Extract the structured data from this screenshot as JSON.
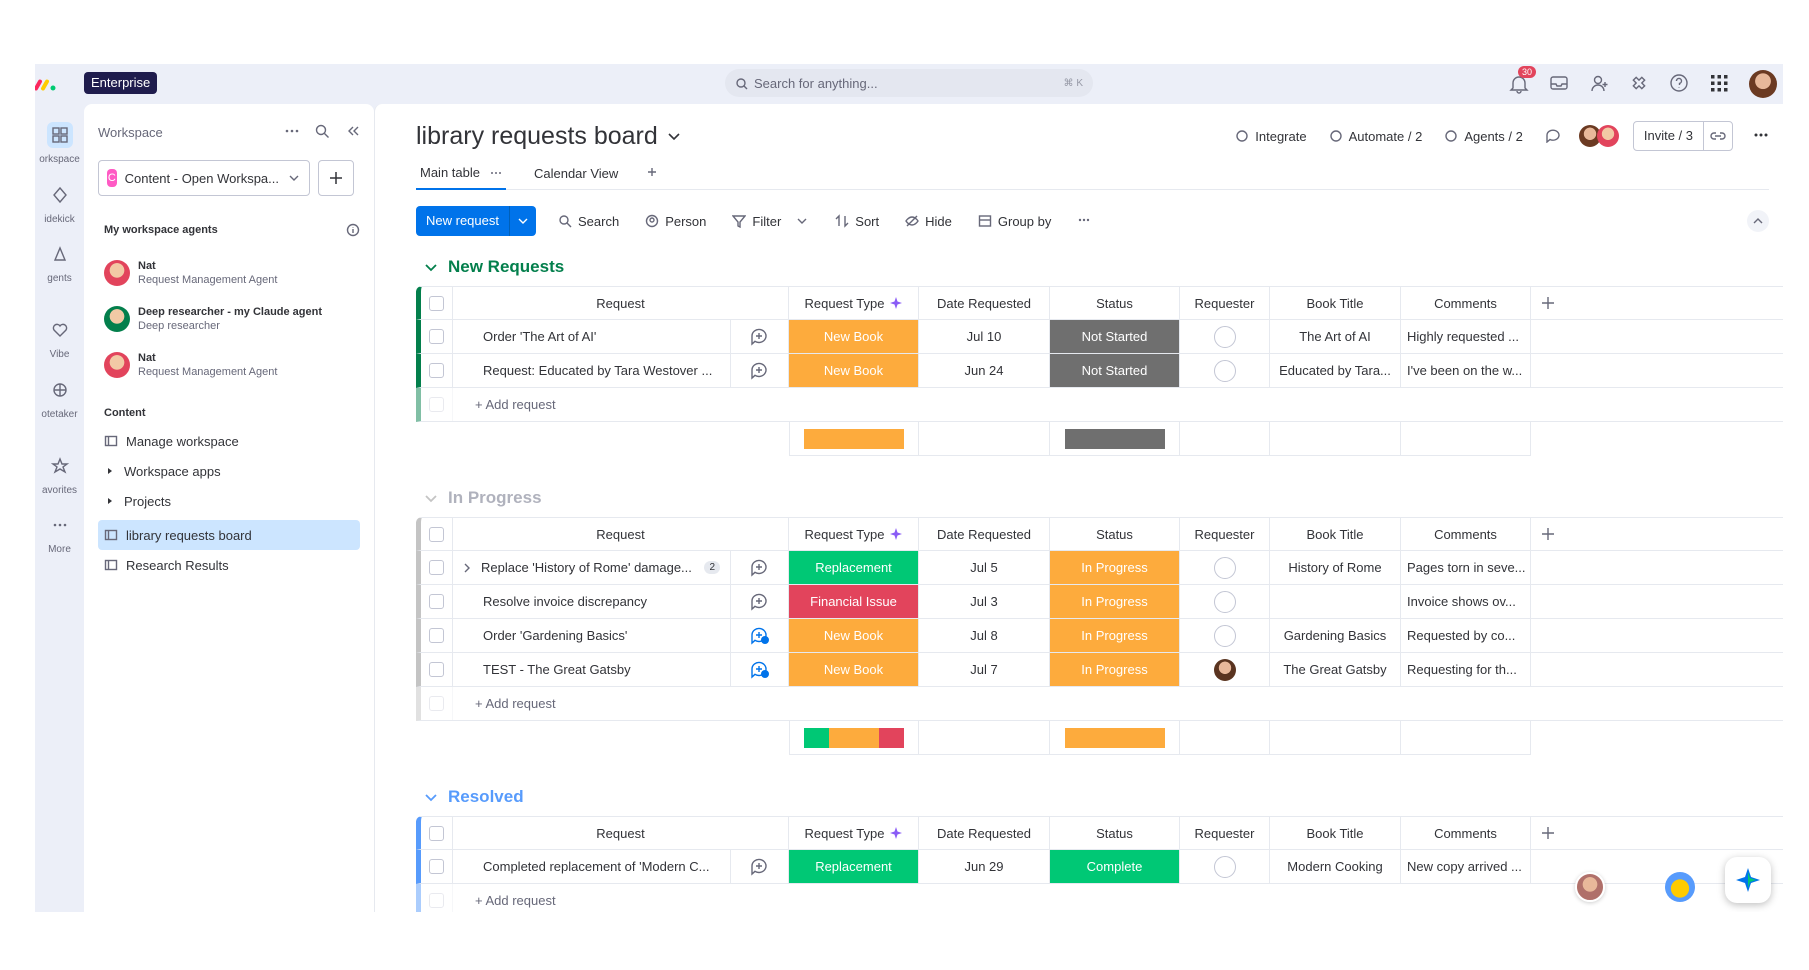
{
  "topbar": {
    "badge": "Enterprise",
    "search": "Search for anything...",
    "shortcut": "⌘ K",
    "notifications": "30"
  },
  "rail": {
    "items": [
      "orkspace",
      "idekick",
      "gents",
      "Vibe",
      "otetaker",
      "avorites",
      "More"
    ]
  },
  "sidebar": {
    "title": "Workspace",
    "workspace_initial": "C",
    "workspace": "Content - Open Workspa...",
    "agents_heading": "My workspace agents",
    "agents": [
      {
        "name": "Nat",
        "role": "Request Management Agent"
      },
      {
        "name": "Deep researcher - my Claude agent",
        "role": "Deep researcher"
      },
      {
        "name": "Nat",
        "role": "Request Management Agent"
      }
    ],
    "content_heading": "Content",
    "items": [
      {
        "label": "Manage workspace"
      },
      {
        "label": "Workspace apps",
        "expandable": true
      },
      {
        "label": "Projects",
        "expandable": true
      },
      {
        "label": "library requests board",
        "active": true
      },
      {
        "label": "Research Results"
      }
    ]
  },
  "board": {
    "title": "library requests board",
    "actions": [
      "Integrate",
      "Automate / 2",
      "Agents / 2"
    ],
    "invite": "Invite / 3",
    "tabs": [
      "Main table",
      "Calendar View"
    ],
    "toolbar": {
      "primary": "New request",
      "items": [
        "Search",
        "Person",
        "Filter",
        "Sort",
        "Hide",
        "Group by"
      ]
    },
    "columns": [
      "Request",
      "Request Type",
      "Date Requested",
      "Status",
      "Requester",
      "Book Title",
      "Comments"
    ],
    "add_row": "+ Add request",
    "groups": [
      {
        "name": "New Requests",
        "color": "#037f4c",
        "rows": [
          {
            "request": "Order 'The Art of AI'",
            "type": "New Book",
            "type_color": "#fdab3d",
            "date": "Jul 10",
            "status": "Not Started",
            "status_color": "#6f6f6f",
            "requester_assigned": false,
            "has_update": false,
            "book": "The Art of AI",
            "comments": "Highly requested ..."
          },
          {
            "request": "Request: Educated by Tara Westover ...",
            "type": "New Book",
            "type_color": "#fdab3d",
            "date": "Jun 24",
            "status": "Not Started",
            "status_color": "#6f6f6f",
            "requester_assigned": false,
            "has_update": false,
            "book": "Educated by Tara...",
            "comments": "I've been on the w..."
          }
        ]
      },
      {
        "name": "In Progress",
        "color": "#c4c4c4",
        "rows": [
          {
            "request": "Replace 'History of Rome' damage...",
            "subitems": "2",
            "type": "Replacement",
            "type_color": "#00c875",
            "date": "Jul 5",
            "status": "In Progress",
            "status_color": "#fdab3d",
            "requester_assigned": false,
            "has_update": false,
            "book": "History of Rome",
            "comments": "Pages torn in seve..."
          },
          {
            "request": "Resolve invoice discrepancy",
            "type": "Financial Issue",
            "type_color": "#e2445c",
            "date": "Jul 3",
            "status": "In Progress",
            "status_color": "#fdab3d",
            "requester_assigned": false,
            "has_update": false,
            "book": null,
            "comments": "Invoice shows ov..."
          },
          {
            "request": "Order 'Gardening Basics'",
            "type": "New Book",
            "type_color": "#fdab3d",
            "date": "Jul 8",
            "status": "In Progress",
            "status_color": "#fdab3d",
            "requester_assigned": false,
            "has_update": true,
            "book": "Gardening Basics",
            "comments": "Requested by co..."
          },
          {
            "request": "TEST - The Great Gatsby",
            "type": "New Book",
            "type_color": "#fdab3d",
            "date": "Jul 7",
            "status": "In Progress",
            "status_color": "#fdab3d",
            "requester_assigned": true,
            "has_update": true,
            "book": "The Great Gatsby",
            "comments": "Requesting for th..."
          }
        ]
      },
      {
        "name": "Resolved",
        "color": "#579bfc",
        "rows": [
          {
            "request": "Completed replacement of 'Modern C...",
            "type": "Replacement",
            "type_color": "#00c875",
            "date": "Jun 29",
            "status": "Complete",
            "status_color": "#00c875",
            "requester_assigned": false,
            "has_update": false,
            "book": "Modern Cooking",
            "comments": "New copy arrived ..."
          }
        ]
      }
    ]
  }
}
